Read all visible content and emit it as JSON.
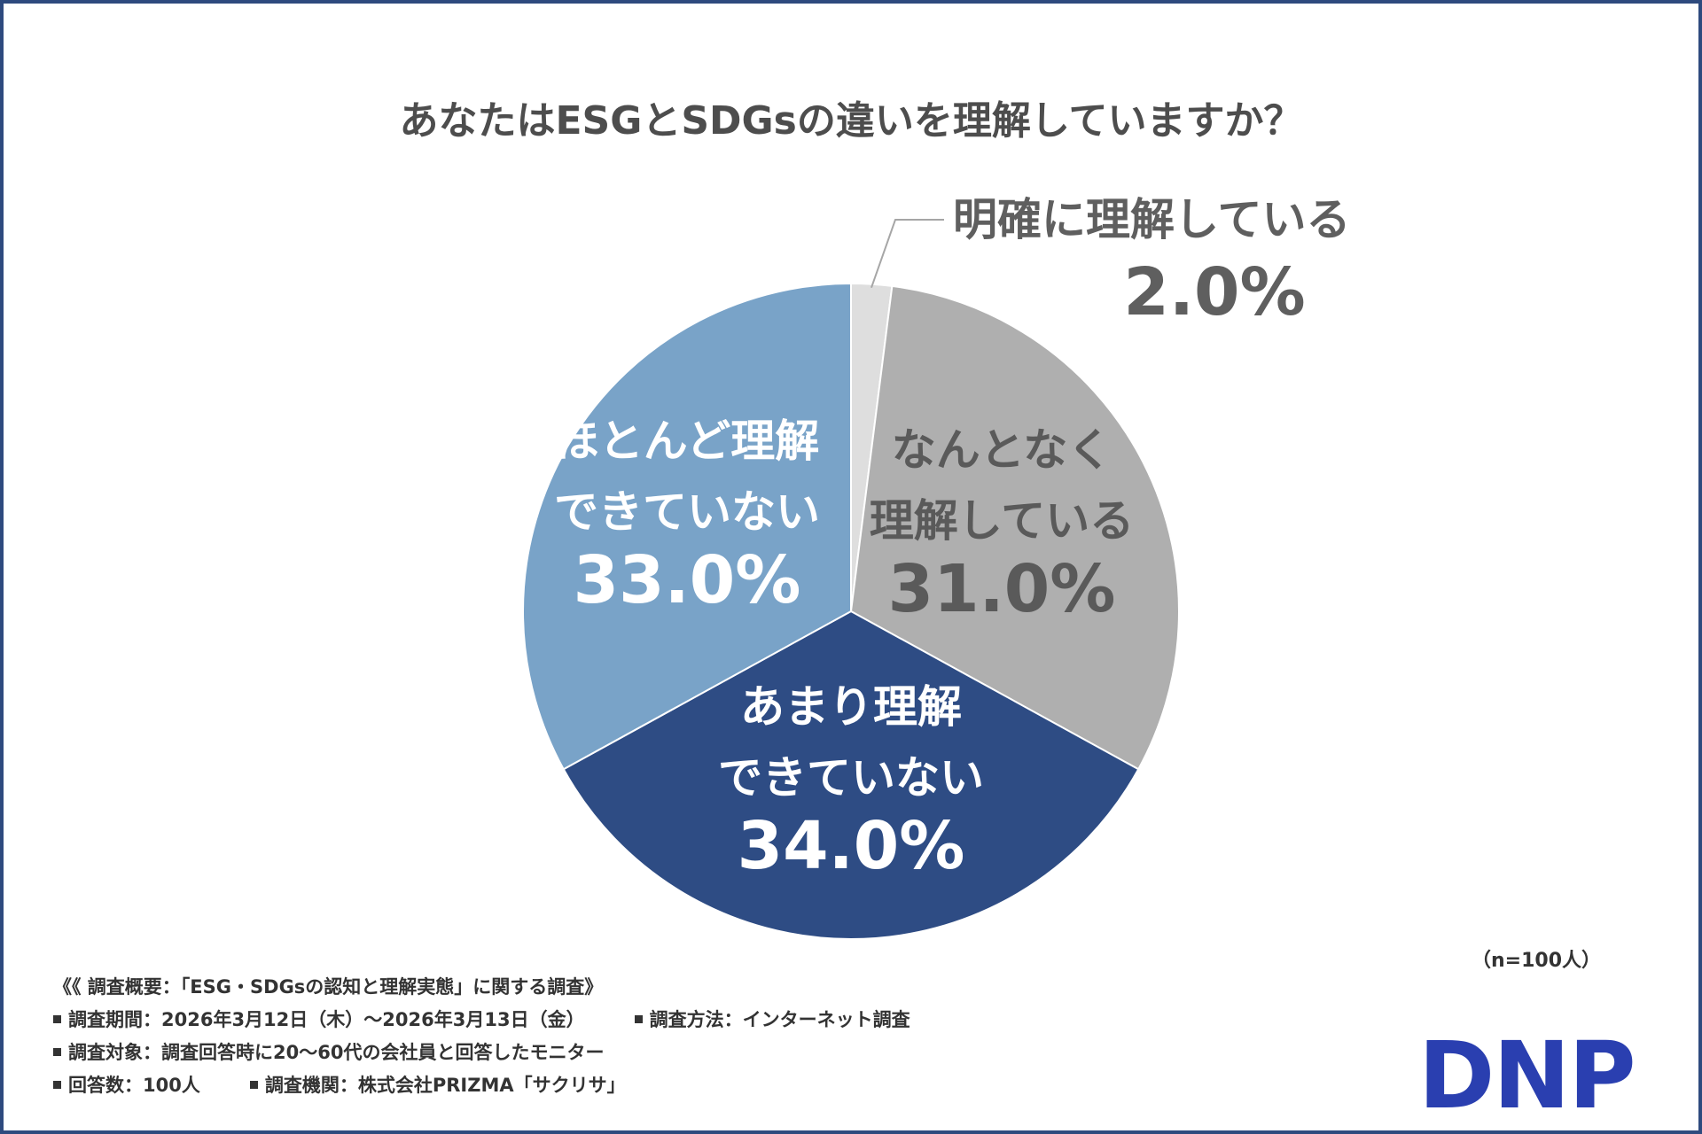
{
  "chart_data": {
    "type": "pie",
    "title": "あなたはESGとSDGsの違いを理解していますか？",
    "unit": "%",
    "slices": [
      {
        "label": "明確に理解している",
        "value": 2.0,
        "value_text": "2.0%",
        "color": "#dedede",
        "text_color": "#5f5f5f"
      },
      {
        "label": "なんとなく理解している",
        "value": 31.0,
        "value_text": "31.0%",
        "color": "#afafaf",
        "text_color": "#5a5a5a"
      },
      {
        "label": "あまり理解できていない",
        "value": 34.0,
        "value_text": "34.0%",
        "color": "#2e4c84",
        "text_color": "#ffffff"
      },
      {
        "label": "ほとんど理解できていない",
        "value": 33.0,
        "value_text": "33.0%",
        "color": "#79a3c8",
        "text_color": "#ffffff"
      }
    ],
    "label_lines": [
      [
        "明確に理解している"
      ],
      [
        "なんとなく",
        "理解している"
      ],
      [
        "あまり理解",
        "できていない"
      ],
      [
        "ほとんど理解",
        "できていない"
      ]
    ]
  },
  "sample_note": "（n=100人）",
  "survey": {
    "heading": "《《 調査概要：「ESG・SDGsの認知と理解実態」に関する調査》",
    "period": "調査期間：2026年3月12日（木）～2026年3月13日（金）",
    "method": "調査方法：インターネット調査",
    "target": "調査対象：調査回答時に20～60代の会社員と回答したモニター",
    "respondents": "回答数：100人",
    "organization": "調査機関：株式会社PRIZMA「サクリサ」"
  },
  "logo_text": "DNP",
  "colors": {
    "frame": "#2e4a7e",
    "logo": "#2a3fb0"
  }
}
